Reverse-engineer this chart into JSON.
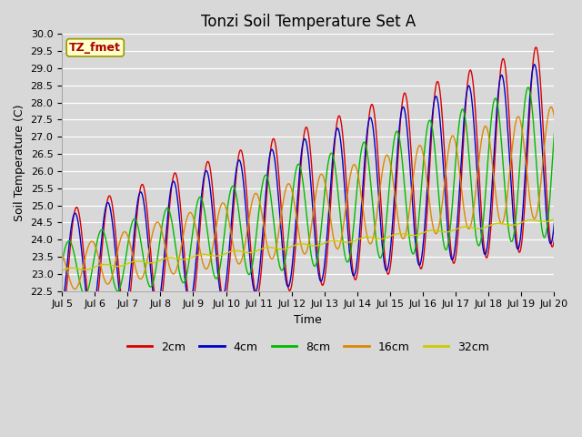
{
  "title": "Tonzi Soil Temperature Set A",
  "xlabel": "Time",
  "ylabel": "Soil Temperature (C)",
  "ylim": [
    22.5,
    30.0
  ],
  "xlim": [
    0,
    360
  ],
  "x_tick_labels": [
    "Jul 5",
    "Jul 6",
    "Jul 7",
    "Jul 8",
    "Jul 9",
    "Jul 10",
    "Jul 11",
    "Jul 12",
    "Jul 13",
    "Jul 14",
    "Jul 15",
    "Jul 16",
    "Jul 17",
    "Jul 18",
    "Jul 19",
    "Jul 20"
  ],
  "x_tick_positions": [
    0,
    24,
    48,
    72,
    96,
    120,
    144,
    168,
    192,
    216,
    240,
    264,
    288,
    312,
    336,
    360
  ],
  "series_colors": [
    "#dd0000",
    "#0000cc",
    "#00bb00",
    "#dd8800",
    "#cccc00"
  ],
  "series_labels": [
    "2cm",
    "4cm",
    "8cm",
    "16cm",
    "32cm"
  ],
  "background_color": "#d8d8d8",
  "plot_bg_color": "#d8d8d8",
  "annotation_text": "TZ_fmet",
  "annotation_bg": "#ffffcc",
  "annotation_fg": "#aa0000",
  "title_fontsize": 12,
  "label_fontsize": 9,
  "tick_fontsize": 8,
  "legend_fontsize": 9,
  "yticks": [
    22.5,
    23.0,
    23.5,
    24.0,
    24.5,
    25.0,
    25.5,
    26.0,
    26.5,
    27.0,
    27.5,
    28.0,
    28.5,
    29.0,
    29.5,
    30.0
  ],
  "n_points": 1441,
  "period_hours": 24,
  "base_start": 23.1,
  "base_end_2cm": 26.8,
  "base_end_4cm": 26.6,
  "base_end_8cm": 26.4,
  "base_end_16cm": 26.3,
  "base_end_32cm": 24.6,
  "amp_2cm_start": 1.7,
  "amp_2cm_end": 3.0,
  "amp_4cm_start": 1.55,
  "amp_4cm_end": 2.7,
  "amp_8cm_start": 0.8,
  "amp_8cm_end": 2.3,
  "amp_16cm_start": 0.6,
  "amp_16cm_end": 1.6,
  "amp_32cm": 0.05,
  "phase_2cm": -1.2,
  "phase_4cm": -0.9,
  "phase_8cm": 0.3,
  "phase_16cm": 2.2,
  "phase_32cm": 0.0
}
